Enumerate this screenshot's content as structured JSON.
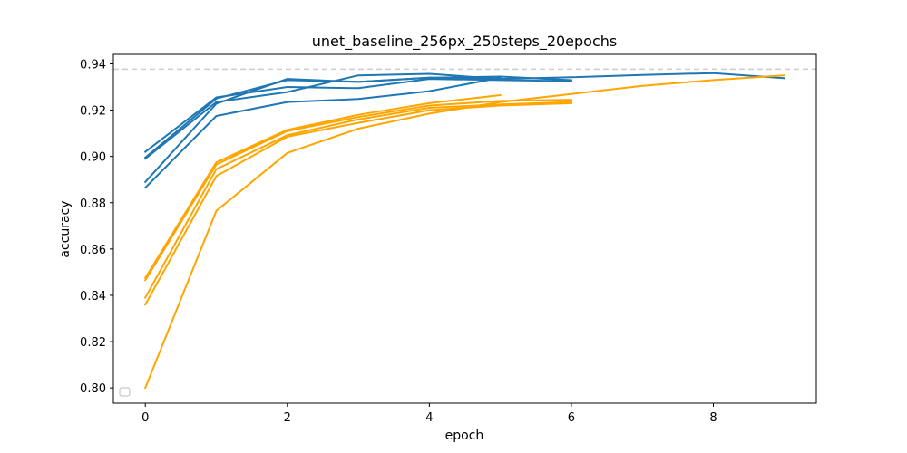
{
  "chart_data": {
    "type": "line",
    "title": "unet_baseline_256px_250steps_20epochs",
    "xlabel": "epoch",
    "ylabel": "accuracy",
    "xlim": [
      -0.45,
      9.45
    ],
    "ylim": [
      0.7934,
      0.9441
    ],
    "xticks": [
      0,
      2,
      4,
      6,
      8
    ],
    "yticks": [
      0.8,
      0.82,
      0.84,
      0.86,
      0.88,
      0.9,
      0.92,
      0.94
    ],
    "ytick_labels": [
      "0.80",
      "0.82",
      "0.84",
      "0.86",
      "0.88",
      "0.90",
      "0.92",
      "0.94"
    ],
    "grid": false,
    "legend": {
      "placement": "lower-left",
      "entries": []
    },
    "reference_line": {
      "y": 0.9377,
      "color": "#cccccc",
      "style": "dashed"
    },
    "colors": {
      "blue": "#1f77b4",
      "orange": "#ffa500"
    },
    "series": [
      {
        "color": "#1f77b4",
        "x": [
          0,
          1,
          2,
          3,
          4,
          5,
          6
        ],
        "y": [
          0.902,
          0.9255,
          0.93,
          0.9295,
          0.9335,
          0.933,
          0.9325
        ]
      },
      {
        "color": "#1f77b4",
        "x": [
          0,
          1,
          2,
          3,
          4,
          5,
          6
        ],
        "y": [
          0.8995,
          0.925,
          0.933,
          0.9322,
          0.934,
          0.9345,
          0.933
        ]
      },
      {
        "color": "#1f77b4",
        "x": [
          0,
          1,
          2,
          3,
          4,
          5
        ],
        "y": [
          0.899,
          0.9235,
          0.9278,
          0.935,
          0.9357,
          0.9335
        ]
      },
      {
        "color": "#1f77b4",
        "x": [
          0,
          1,
          2,
          3,
          4,
          5,
          6,
          7,
          8,
          9
        ],
        "y": [
          0.889,
          0.9228,
          0.9335,
          0.9322,
          0.934,
          0.9335,
          0.9342,
          0.9352,
          0.936,
          0.9338
        ]
      },
      {
        "color": "#1f77b4",
        "x": [
          0,
          1,
          2,
          3,
          4,
          5
        ],
        "y": [
          0.8865,
          0.9175,
          0.9235,
          0.9248,
          0.9282,
          0.934
        ]
      },
      {
        "color": "#ffa500",
        "x": [
          0,
          1,
          2,
          3,
          4,
          5
        ],
        "y": [
          0.8475,
          0.8975,
          0.9115,
          0.918,
          0.923,
          0.9265
        ]
      },
      {
        "color": "#ffa500",
        "x": [
          0,
          1,
          2,
          3,
          4,
          5,
          6
        ],
        "y": [
          0.8465,
          0.8965,
          0.911,
          0.917,
          0.922,
          0.924,
          0.9245
        ]
      },
      {
        "color": "#ffa500",
        "x": [
          0,
          1,
          2,
          3,
          4,
          5,
          6
        ],
        "y": [
          0.839,
          0.8945,
          0.9092,
          0.916,
          0.921,
          0.9225,
          0.9235
        ]
      },
      {
        "color": "#ffa500",
        "x": [
          0,
          1,
          2,
          3,
          4,
          5,
          6
        ],
        "y": [
          0.836,
          0.8915,
          0.9085,
          0.9145,
          0.92,
          0.922,
          0.923
        ]
      },
      {
        "color": "#ffa500",
        "x": [
          0,
          1,
          2,
          3,
          4,
          5,
          6,
          7,
          8,
          9
        ],
        "y": [
          0.8,
          0.8765,
          0.9015,
          0.912,
          0.9185,
          0.9235,
          0.927,
          0.9305,
          0.933,
          0.935
        ]
      }
    ]
  }
}
